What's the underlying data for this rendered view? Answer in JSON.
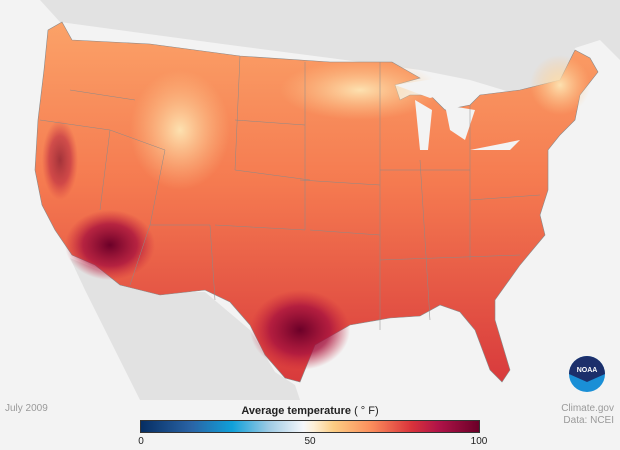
{
  "map": {
    "region": "Contiguous United States",
    "variable": "Average temperature"
  },
  "date_label": "July 2009",
  "legend": {
    "title": "Average temperature",
    "unit": "( ° F)",
    "ticks": [
      "0",
      "50",
      "100"
    ],
    "min": 0,
    "max": 100,
    "colors": [
      "#062e63",
      "#10a0d8",
      "#f5f7fb",
      "#fccd83",
      "#d9333b",
      "#6b0028"
    ]
  },
  "credit": {
    "line1": "Climate.gov",
    "line2": "Data: NCEI"
  },
  "logo": {
    "text": "NOAA"
  }
}
